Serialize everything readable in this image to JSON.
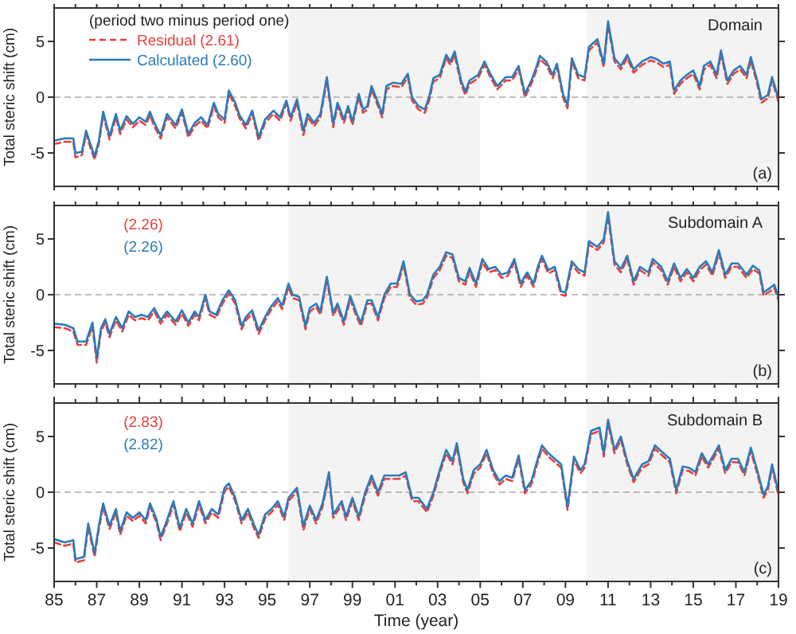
{
  "chart_data": [
    {
      "type": "line",
      "ylabel": "Total steric shift (cm)",
      "legend": "top left",
      "legend_title": "(period two minus period one)",
      "annotations": [
        "Domain",
        "(a)"
      ],
      "tick_labels": "y",
      "grid": false,
      "xlim": [
        1985,
        2019
      ],
      "ylim": [
        -8,
        8
      ],
      "yticks": [
        -5,
        0,
        5
      ],
      "xticks": [
        {
          "value": 1985,
          "label": null
        },
        {
          "value": 1986,
          "label": null
        },
        {
          "value": 1987,
          "label": null
        },
        {
          "value": 1988,
          "label": null
        },
        {
          "value": 1989,
          "label": null
        },
        {
          "value": 1990,
          "label": null
        },
        {
          "value": 1991,
          "label": null
        },
        {
          "value": 1992,
          "label": null
        },
        {
          "value": 1993,
          "label": null
        },
        {
          "value": 1994,
          "label": null
        },
        {
          "value": 1995,
          "label": null
        },
        {
          "value": 1996,
          "label": null
        },
        {
          "value": 1997,
          "label": null
        },
        {
          "value": 1998,
          "label": null
        },
        {
          "value": 1999,
          "label": null
        },
        {
          "value": 2000,
          "label": null
        },
        {
          "value": 2001,
          "label": null
        },
        {
          "value": 2002,
          "label": null
        },
        {
          "value": 2003,
          "label": null
        },
        {
          "value": 2004,
          "label": null
        },
        {
          "value": 2005,
          "label": null
        },
        {
          "value": 2006,
          "label": null
        },
        {
          "value": 2007,
          "label": null
        },
        {
          "value": 2008,
          "label": null
        },
        {
          "value": 2009,
          "label": null
        },
        {
          "value": 2010,
          "label": null
        },
        {
          "value": 2011,
          "label": null
        },
        {
          "value": 2012,
          "label": null
        },
        {
          "value": 2013,
          "label": null
        },
        {
          "value": 2014,
          "label": null
        },
        {
          "value": 2015,
          "label": null
        },
        {
          "value": 2016,
          "label": null
        },
        {
          "value": 2017,
          "label": null
        },
        {
          "value": 2018,
          "label": null
        },
        {
          "value": 2019,
          "label": null
        }
      ],
      "bands": [
        {
          "axis": "x",
          "from": 1996,
          "to": 2005,
          "color": "#f3f3f3"
        },
        {
          "axis": "x",
          "from": 2010,
          "to": 2019,
          "color": "#f3f3f3"
        }
      ],
      "ref_lines": [
        {
          "axis": "y",
          "value": 0,
          "color": "#aaaaaa",
          "line_style": "dashed"
        }
      ],
      "x": [
        1985,
        1985.5,
        1985.9,
        1986,
        1986.3,
        1986.5,
        1986.7,
        1986.9,
        1987.1,
        1987.3,
        1987.6,
        1987.9,
        1988.1,
        1988.4,
        1988.7,
        1989,
        1989.3,
        1989.5,
        1989.7,
        1990,
        1990.3,
        1990.7,
        1991,
        1991.3,
        1991.6,
        1991.9,
        1992.2,
        1992.5,
        1992.7,
        1993,
        1993.2,
        1993.5,
        1993.7,
        1994,
        1994.3,
        1994.6,
        1994.9,
        1995.3,
        1995.6,
        1995.9,
        1996.1,
        1996.4,
        1996.7,
        1996.9,
        1997.2,
        1997.5,
        1997.8,
        1998.1,
        1998.3,
        1998.6,
        1998.8,
        1999,
        1999.3,
        1999.5,
        1999.7,
        1999.9,
        2000.1,
        2000.4,
        2000.6,
        2000.9,
        2001.3,
        2001.6,
        2001.8,
        2002.1,
        2002.4,
        2002.6,
        2002.8,
        2003.1,
        2003.4,
        2003.6,
        2003.8,
        2004.1,
        2004.3,
        2004.5,
        2004.9,
        2005.2,
        2005.5,
        2005.8,
        2006.2,
        2006.5,
        2006.8,
        2007.1,
        2007.4,
        2007.6,
        2007.8,
        2008.1,
        2008.4,
        2008.6,
        2008.9,
        2009.1,
        2009.3,
        2009.6,
        2009.9,
        2010.1,
        2010.5,
        2010.8,
        2011,
        2011.3,
        2011.6,
        2011.9,
        2012.2,
        2012.6,
        2013,
        2013.3,
        2013.6,
        2013.9,
        2014.1,
        2014.4,
        2014.7,
        2015,
        2015.3,
        2015.5,
        2015.8,
        2016.1,
        2016.3,
        2016.6,
        2016.9,
        2017.2,
        2017.5,
        2017.7,
        2018,
        2018.2,
        2018.5,
        2018.7,
        2019
      ],
      "series": [
        {
          "name": "Residual (2.61)",
          "color": "#e8403c",
          "line_style": "dashed",
          "values": [
            -4.2,
            -4.0,
            -4.0,
            -5.4,
            -5.2,
            -3.3,
            -4.5,
            -5.6,
            -4.2,
            -1.6,
            -3.8,
            -1.8,
            -3.3,
            -2.0,
            -2.7,
            -2.1,
            -2.5,
            -1.6,
            -2.6,
            -3.7,
            -1.8,
            -2.8,
            -1.4,
            -3.6,
            -2.6,
            -2.1,
            -2.8,
            -0.8,
            -1.8,
            -2.3,
            0.3,
            -0.8,
            -1.9,
            -2.8,
            -1.5,
            -3.9,
            -2.3,
            -1.5,
            -2.1,
            -0.6,
            -2.1,
            -0.5,
            -3.4,
            -1.8,
            -2.6,
            -1.8,
            1.5,
            -2.7,
            -0.8,
            -2.3,
            -1.1,
            -2.5,
            0.0,
            -1.4,
            -1.1,
            0.7,
            -0.3,
            -1.8,
            0.7,
            1.0,
            0.9,
            1.8,
            -0.3,
            -1.1,
            -1.4,
            -0.3,
            1.4,
            1.7,
            3.5,
            2.9,
            3.8,
            1.2,
            0.2,
            1.2,
            1.7,
            2.9,
            1.7,
            0.7,
            1.5,
            1.5,
            2.5,
            0.0,
            1.2,
            2.2,
            3.4,
            2.9,
            1.7,
            2.7,
            -0.1,
            -1.0,
            3.2,
            1.7,
            1.5,
            4.2,
            4.9,
            2.7,
            6.5,
            3.2,
            2.5,
            3.5,
            2.2,
            2.9,
            3.3,
            3.1,
            2.7,
            2.9,
            0.3,
            1.2,
            1.7,
            2.1,
            0.7,
            2.5,
            2.9,
            1.7,
            3.9,
            1.2,
            2.1,
            2.5,
            1.7,
            3.3,
            1.2,
            -0.5,
            -0.1,
            1.5,
            -0.4
          ]
        },
        {
          "name": "Calculated (2.60)",
          "color": "#2b7bba",
          "line_style": "solid",
          "values": [
            -3.9,
            -3.7,
            -3.7,
            -5.0,
            -4.9,
            -3.0,
            -4.2,
            -5.3,
            -3.9,
            -1.3,
            -3.5,
            -1.5,
            -3.0,
            -1.7,
            -2.4,
            -1.8,
            -2.2,
            -1.3,
            -2.3,
            -3.4,
            -1.5,
            -2.5,
            -1.1,
            -3.3,
            -2.3,
            -1.8,
            -2.5,
            -0.5,
            -1.5,
            -2.0,
            0.6,
            -0.5,
            -1.6,
            -2.5,
            -1.2,
            -3.6,
            -2.0,
            -1.2,
            -1.8,
            -0.3,
            -1.8,
            -0.2,
            -3.0,
            -1.5,
            -2.3,
            -1.5,
            1.8,
            -2.4,
            -0.5,
            -2.0,
            -0.8,
            -2.2,
            0.3,
            -1.1,
            -0.8,
            1.0,
            0.0,
            -1.5,
            1.0,
            1.3,
            1.2,
            2.1,
            0.0,
            -0.8,
            -1.1,
            0.0,
            1.7,
            2.0,
            3.8,
            3.2,
            4.1,
            1.5,
            0.5,
            1.5,
            2.0,
            3.2,
            2.0,
            1.0,
            1.8,
            1.8,
            2.8,
            0.3,
            1.5,
            2.5,
            3.7,
            3.2,
            2.0,
            3.0,
            0.2,
            -0.7,
            3.5,
            2.0,
            1.8,
            4.5,
            5.2,
            3.0,
            6.8,
            3.5,
            2.8,
            3.8,
            2.5,
            3.2,
            3.6,
            3.4,
            3.0,
            3.2,
            0.6,
            1.5,
            2.0,
            2.4,
            1.0,
            2.8,
            3.2,
            2.0,
            4.2,
            1.5,
            2.4,
            2.8,
            2.0,
            3.6,
            1.5,
            -0.2,
            0.2,
            1.8,
            -0.1
          ]
        }
      ]
    },
    {
      "type": "line",
      "ylabel": "Total steric shift (cm)",
      "annotations": [
        "Subdomain A",
        "(b)"
      ],
      "tick_labels": "y",
      "grid": false,
      "xlim": [
        1985,
        2019
      ],
      "ylim": [
        -8,
        8
      ],
      "yticks": [
        -5,
        0,
        5
      ],
      "xticks": [
        {
          "value": 1985,
          "label": null
        },
        {
          "value": 1986,
          "label": null
        },
        {
          "value": 1987,
          "label": null
        },
        {
          "value": 1988,
          "label": null
        },
        {
          "value": 1989,
          "label": null
        },
        {
          "value": 1990,
          "label": null
        },
        {
          "value": 1991,
          "label": null
        },
        {
          "value": 1992,
          "label": null
        },
        {
          "value": 1993,
          "label": null
        },
        {
          "value": 1994,
          "label": null
        },
        {
          "value": 1995,
          "label": null
        },
        {
          "value": 1996,
          "label": null
        },
        {
          "value": 1997,
          "label": null
        },
        {
          "value": 1998,
          "label": null
        },
        {
          "value": 1999,
          "label": null
        },
        {
          "value": 2000,
          "label": null
        },
        {
          "value": 2001,
          "label": null
        },
        {
          "value": 2002,
          "label": null
        },
        {
          "value": 2003,
          "label": null
        },
        {
          "value": 2004,
          "label": null
        },
        {
          "value": 2005,
          "label": null
        },
        {
          "value": 2006,
          "label": null
        },
        {
          "value": 2007,
          "label": null
        },
        {
          "value": 2008,
          "label": null
        },
        {
          "value": 2009,
          "label": null
        },
        {
          "value": 2010,
          "label": null
        },
        {
          "value": 2011,
          "label": null
        },
        {
          "value": 2012,
          "label": null
        },
        {
          "value": 2013,
          "label": null
        },
        {
          "value": 2014,
          "label": null
        },
        {
          "value": 2015,
          "label": null
        },
        {
          "value": 2016,
          "label": null
        },
        {
          "value": 2017,
          "label": null
        },
        {
          "value": 2018,
          "label": null
        },
        {
          "value": 2019,
          "label": null
        }
      ],
      "bands": [
        {
          "axis": "x",
          "from": 1996,
          "to": 2005,
          "color": "#f3f3f3"
        },
        {
          "axis": "x",
          "from": 2010,
          "to": 2019,
          "color": "#f3f3f3"
        }
      ],
      "ref_lines": [
        {
          "axis": "y",
          "value": 0,
          "color": "#aaaaaa",
          "line_style": "dashed"
        }
      ],
      "x": [
        1985,
        1985.5,
        1985.9,
        1986.1,
        1986.5,
        1986.8,
        1987,
        1987.2,
        1987.4,
        1987.6,
        1987.9,
        1988.2,
        1988.5,
        1988.8,
        1989.1,
        1989.4,
        1989.7,
        1990,
        1990.3,
        1990.7,
        1991,
        1991.3,
        1991.6,
        1991.8,
        1992.1,
        1992.3,
        1992.6,
        1992.9,
        1993.2,
        1993.5,
        1993.8,
        1994,
        1994.3,
        1994.6,
        1994.9,
        1995.2,
        1995.5,
        1995.7,
        1996,
        1996.2,
        1996.5,
        1996.8,
        1997,
        1997.3,
        1997.5,
        1997.8,
        1998.1,
        1998.3,
        1998.6,
        1998.9,
        1999.2,
        1999.4,
        1999.7,
        1999.9,
        2000.2,
        2000.5,
        2000.8,
        2001.1,
        2001.4,
        2001.7,
        2002,
        2002.3,
        2002.5,
        2002.8,
        2003.1,
        2003.4,
        2003.7,
        2004,
        2004.3,
        2004.5,
        2004.8,
        2005.1,
        2005.4,
        2005.7,
        2006,
        2006.3,
        2006.6,
        2006.9,
        2007.2,
        2007.5,
        2007.7,
        2007.9,
        2008.2,
        2008.5,
        2008.8,
        2009,
        2009.3,
        2009.6,
        2009.9,
        2010.1,
        2010.5,
        2010.8,
        2011,
        2011.3,
        2011.6,
        2011.9,
        2012.2,
        2012.5,
        2012.9,
        2013.1,
        2013.5,
        2013.8,
        2014.1,
        2014.4,
        2014.7,
        2015,
        2015.3,
        2015.6,
        2015.9,
        2016.2,
        2016.5,
        2016.8,
        2017.1,
        2017.5,
        2017.8,
        2018.1,
        2018.3,
        2018.6,
        2018.8,
        2019
      ],
      "series": [
        {
          "name": "(2.26)",
          "color": "#e8403c",
          "line_style": "dashed",
          "values": [
            -2.9,
            -3.0,
            -3.3,
            -4.5,
            -4.5,
            -2.8,
            -6.1,
            -3.3,
            -2.5,
            -3.8,
            -2.3,
            -3.3,
            -1.8,
            -2.3,
            -2.1,
            -2.3,
            -1.5,
            -2.6,
            -1.8,
            -2.7,
            -1.7,
            -2.8,
            -1.8,
            -2.3,
            -0.3,
            -1.8,
            -2.1,
            -0.8,
            0.1,
            -0.8,
            -3.1,
            -2.3,
            -1.7,
            -3.5,
            -2.3,
            -1.3,
            -0.6,
            -1.3,
            0.7,
            -0.3,
            -0.5,
            -3.1,
            -1.5,
            -1.1,
            -1.8,
            1.3,
            -1.9,
            -1.1,
            -2.7,
            -0.4,
            -2.0,
            -2.8,
            -0.8,
            -0.8,
            -2.3,
            -0.3,
            0.7,
            0.7,
            2.7,
            -0.3,
            -0.9,
            -0.8,
            -0.3,
            1.5,
            2.2,
            3.5,
            3.3,
            1.2,
            0.9,
            2.1,
            0.7,
            2.9,
            2.0,
            2.2,
            1.5,
            1.7,
            2.9,
            0.7,
            1.7,
            0.7,
            2.2,
            3.2,
            1.9,
            2.2,
            0.0,
            -0.1,
            2.7,
            2.0,
            1.7,
            4.5,
            4.0,
            4.7,
            7.1,
            2.7,
            2.0,
            3.2,
            0.9,
            2.2,
            1.7,
            2.9,
            2.2,
            0.9,
            2.5,
            1.2,
            2.0,
            1.2,
            2.2,
            2.7,
            1.7,
            3.7,
            1.5,
            2.5,
            2.5,
            1.5,
            2.3,
            1.9,
            -0.1,
            0.3,
            0.6,
            -0.5
          ]
        },
        {
          "name": "(2.26)",
          "color": "#2b7bba",
          "line_style": "solid",
          "values": [
            -2.6,
            -2.7,
            -3.0,
            -4.2,
            -4.2,
            -2.5,
            -5.7,
            -3.0,
            -2.2,
            -3.5,
            -2.0,
            -3.0,
            -1.5,
            -2.0,
            -1.8,
            -2.0,
            -1.2,
            -2.3,
            -1.5,
            -2.4,
            -1.4,
            -2.5,
            -1.5,
            -2.0,
            0.0,
            -1.5,
            -1.8,
            -0.5,
            0.4,
            -0.5,
            -2.8,
            -2.0,
            -1.4,
            -3.2,
            -2.0,
            -1.0,
            -0.3,
            -1.0,
            1.0,
            0.0,
            -0.2,
            -2.8,
            -1.2,
            -0.8,
            -1.5,
            1.6,
            -1.6,
            -0.8,
            -2.4,
            -0.1,
            -1.7,
            -2.5,
            -0.5,
            -0.5,
            -2.0,
            0.0,
            1.0,
            1.0,
            3.0,
            0.0,
            -0.6,
            -0.5,
            0.0,
            1.8,
            2.5,
            3.8,
            3.6,
            1.5,
            1.2,
            2.4,
            1.0,
            3.2,
            2.3,
            2.5,
            1.8,
            2.0,
            3.2,
            1.0,
            2.0,
            1.0,
            2.5,
            3.5,
            2.2,
            2.5,
            0.3,
            0.2,
            3.0,
            2.3,
            2.0,
            4.8,
            4.3,
            5.0,
            7.4,
            3.0,
            2.3,
            3.5,
            1.2,
            2.5,
            2.0,
            3.2,
            2.5,
            1.2,
            2.8,
            1.5,
            2.3,
            1.5,
            2.5,
            3.0,
            2.0,
            4.0,
            1.8,
            2.8,
            2.8,
            1.8,
            2.6,
            2.2,
            0.2,
            0.6,
            0.9,
            -0.2
          ]
        }
      ]
    },
    {
      "type": "line",
      "ylabel": "Total steric shift (cm)",
      "xlabel": "Time (year)",
      "annotations": [
        "Subdomain B",
        "(c)"
      ],
      "grid": false,
      "xlim": [
        1985,
        2019
      ],
      "ylim": [
        -8,
        8
      ],
      "yticks": [
        -5,
        0,
        5
      ],
      "xticks": [
        {
          "value": 1985,
          "label": "85"
        },
        {
          "value": 1986,
          "label": null
        },
        {
          "value": 1987,
          "label": "87"
        },
        {
          "value": 1988,
          "label": null
        },
        {
          "value": 1989,
          "label": "89"
        },
        {
          "value": 1990,
          "label": null
        },
        {
          "value": 1991,
          "label": "91"
        },
        {
          "value": 1992,
          "label": null
        },
        {
          "value": 1993,
          "label": "93"
        },
        {
          "value": 1994,
          "label": null
        },
        {
          "value": 1995,
          "label": "95"
        },
        {
          "value": 1996,
          "label": null
        },
        {
          "value": 1997,
          "label": "97"
        },
        {
          "value": 1998,
          "label": null
        },
        {
          "value": 1999,
          "label": "99"
        },
        {
          "value": 2000,
          "label": null
        },
        {
          "value": 2001,
          "label": "01"
        },
        {
          "value": 2002,
          "label": null
        },
        {
          "value": 2003,
          "label": "03"
        },
        {
          "value": 2004,
          "label": null
        },
        {
          "value": 2005,
          "label": "05"
        },
        {
          "value": 2006,
          "label": null
        },
        {
          "value": 2007,
          "label": "07"
        },
        {
          "value": 2008,
          "label": null
        },
        {
          "value": 2009,
          "label": "09"
        },
        {
          "value": 2010,
          "label": null
        },
        {
          "value": 2011,
          "label": "11"
        },
        {
          "value": 2012,
          "label": null
        },
        {
          "value": 2013,
          "label": "13"
        },
        {
          "value": 2014,
          "label": null
        },
        {
          "value": 2015,
          "label": "15"
        },
        {
          "value": 2016,
          "label": null
        },
        {
          "value": 2017,
          "label": "17"
        },
        {
          "value": 2018,
          "label": null
        },
        {
          "value": 2019,
          "label": "19"
        }
      ],
      "bands": [
        {
          "axis": "x",
          "from": 1996,
          "to": 2005,
          "color": "#f3f3f3"
        },
        {
          "axis": "x",
          "from": 2010,
          "to": 2019,
          "color": "#f3f3f3"
        }
      ],
      "ref_lines": [
        {
          "axis": "y",
          "value": 0,
          "color": "#aaaaaa",
          "line_style": "dashed"
        }
      ],
      "x": [
        1985,
        1985.5,
        1985.9,
        1986,
        1986.4,
        1986.6,
        1986.9,
        1987.1,
        1987.3,
        1987.6,
        1987.9,
        1988.1,
        1988.4,
        1988.7,
        1989,
        1989.3,
        1989.5,
        1989.8,
        1990,
        1990.3,
        1990.6,
        1990.9,
        1991.2,
        1991.5,
        1991.8,
        1992.1,
        1992.4,
        1992.7,
        1993,
        1993.2,
        1993.5,
        1993.8,
        1994.1,
        1994.4,
        1994.6,
        1994.9,
        1995.2,
        1995.5,
        1995.8,
        1996,
        1996.4,
        1996.7,
        1997,
        1997.3,
        1997.6,
        1997.9,
        1998.1,
        1998.5,
        1998.7,
        1999,
        1999.3,
        1999.6,
        1999.9,
        2000.2,
        2000.5,
        2000.8,
        2001.2,
        2001.5,
        2001.8,
        2002.1,
        2002.5,
        2002.8,
        2003.1,
        2003.4,
        2003.7,
        2003.9,
        2004.2,
        2004.4,
        2004.7,
        2005,
        2005.3,
        2005.6,
        2005.9,
        2006.2,
        2006.5,
        2006.8,
        2007.1,
        2007.4,
        2007.7,
        2007.9,
        2008.2,
        2008.5,
        2008.8,
        2009.1,
        2009.4,
        2009.7,
        2009.9,
        2010.2,
        2010.6,
        2010.8,
        2011,
        2011.3,
        2011.6,
        2011.9,
        2012.2,
        2012.6,
        2012.9,
        2013.2,
        2013.6,
        2013.9,
        2014.2,
        2014.5,
        2014.8,
        2015.1,
        2015.4,
        2015.7,
        2016,
        2016.2,
        2016.5,
        2016.8,
        2017.1,
        2017.4,
        2017.7,
        2018,
        2018.3,
        2018.5,
        2018.7,
        2019
      ],
      "series": [
        {
          "name": "(2.83)",
          "color": "#e8403c",
          "line_style": "dashed",
          "values": [
            -4.5,
            -4.8,
            -4.6,
            -6.3,
            -6.1,
            -3.1,
            -5.8,
            -3.3,
            -1.3,
            -3.3,
            -1.8,
            -3.8,
            -2.1,
            -2.6,
            -2.1,
            -2.8,
            -1.3,
            -2.7,
            -4.3,
            -2.8,
            -1.1,
            -3.5,
            -1.8,
            -3.1,
            -1.1,
            -2.8,
            -1.8,
            -2.3,
            0.1,
            0.5,
            -0.8,
            -2.8,
            -1.8,
            -3.3,
            -4.1,
            -2.3,
            -1.8,
            -1.1,
            -2.5,
            -0.8,
            0.1,
            -3.4,
            -1.5,
            -2.8,
            -1.3,
            1.5,
            -2.3,
            -1.1,
            -2.5,
            -0.8,
            -2.5,
            -0.3,
            1.2,
            -0.3,
            1.2,
            1.2,
            1.2,
            1.5,
            -0.8,
            -0.8,
            -1.8,
            -0.3,
            1.7,
            3.5,
            2.5,
            4.1,
            0.9,
            -0.1,
            1.7,
            2.2,
            3.5,
            1.7,
            0.7,
            1.2,
            1.0,
            3.0,
            -0.1,
            0.7,
            2.7,
            3.9,
            3.2,
            2.7,
            2.2,
            -1.6,
            2.9,
            1.7,
            2.2,
            5.2,
            5.5,
            3.2,
            6.2,
            3.5,
            4.7,
            2.5,
            0.9,
            2.2,
            2.5,
            3.9,
            3.2,
            2.7,
            -0.1,
            2.0,
            1.9,
            1.5,
            3.2,
            2.2,
            3.2,
            3.9,
            1.7,
            2.7,
            2.7,
            1.5,
            3.7,
            1.7,
            -0.5,
            0.2,
            2.2,
            -0.3
          ]
        },
        {
          "name": "(2.82)",
          "color": "#2b7bba",
          "line_style": "solid",
          "values": [
            -4.2,
            -4.5,
            -4.3,
            -6.0,
            -5.8,
            -2.8,
            -5.5,
            -3.0,
            -1.0,
            -3.0,
            -1.5,
            -3.5,
            -1.8,
            -2.3,
            -1.8,
            -2.5,
            -1.0,
            -2.4,
            -4.0,
            -2.5,
            -0.8,
            -3.2,
            -1.5,
            -2.8,
            -0.8,
            -2.5,
            -1.5,
            -2.0,
            0.4,
            0.8,
            -0.5,
            -2.5,
            -1.5,
            -3.0,
            -3.8,
            -2.0,
            -1.5,
            -0.8,
            -2.2,
            -0.5,
            0.4,
            -3.0,
            -1.2,
            -2.5,
            -1.0,
            1.8,
            -2.0,
            -0.8,
            -2.2,
            -0.5,
            -2.2,
            0.0,
            1.5,
            0.0,
            1.5,
            1.5,
            1.5,
            1.8,
            -0.5,
            -0.5,
            -1.5,
            0.0,
            2.0,
            3.8,
            2.8,
            4.4,
            1.2,
            0.2,
            2.0,
            2.5,
            3.8,
            2.0,
            1.0,
            1.5,
            1.3,
            3.3,
            0.2,
            1.0,
            3.0,
            4.2,
            3.5,
            3.0,
            2.5,
            -1.3,
            3.2,
            2.0,
            2.5,
            5.5,
            5.8,
            3.5,
            6.5,
            3.8,
            5.0,
            2.8,
            1.2,
            2.5,
            2.8,
            4.2,
            3.5,
            3.0,
            0.2,
            2.3,
            2.2,
            1.8,
            3.5,
            2.5,
            3.5,
            4.2,
            2.0,
            3.0,
            3.0,
            1.8,
            4.0,
            2.0,
            -0.2,
            0.5,
            2.5,
            0.0
          ]
        }
      ]
    }
  ]
}
